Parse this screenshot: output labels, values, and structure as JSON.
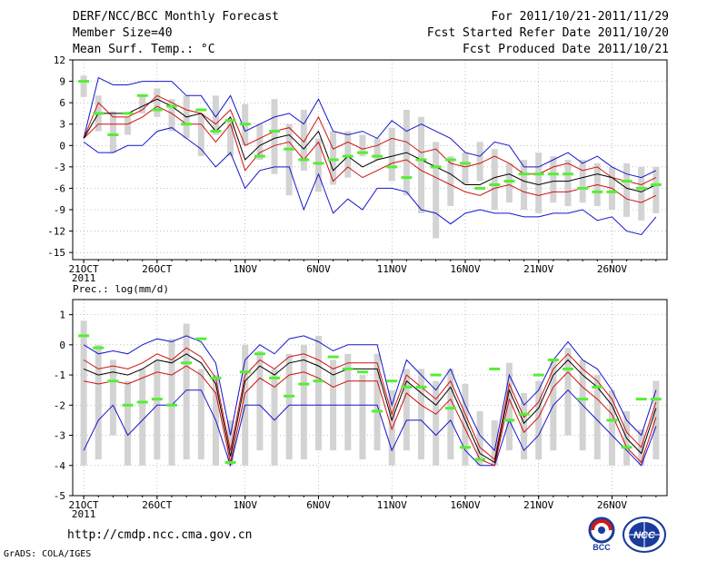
{
  "header": {
    "title": "DERF/NCC/BCC Monthly Forecast",
    "member": "Member Size=40",
    "variable": "Mean Surf. Temp.: °C",
    "period": "For 2011/10/21-2011/11/29",
    "refer": "Fcst Started Refer Date 2011/10/20",
    "produced": "Fcst Produced Date 2011/10/21"
  },
  "footer": {
    "url": "http://cmdp.ncc.cma.gov.cn",
    "grads": "GrADS: COLA/IGES",
    "logo1": "BCC",
    "logo2": "NCC"
  },
  "colors": {
    "box": "#d3d3d3",
    "median": "#55ee33",
    "mean": "#000000",
    "quartile": "#d01010",
    "extreme": "#1515cc",
    "grid": "#999999"
  },
  "chart_data": [
    {
      "type": "box",
      "name": "Mean Surf. Temp.",
      "ylabel": "Mean Surf. Temp.: °C",
      "ylim": [
        -16,
        12
      ],
      "yticks": [
        12,
        9,
        6,
        3,
        0,
        -3,
        -6,
        -9,
        -12,
        -15
      ],
      "grid": true,
      "x_labels": [
        {
          "day": 1,
          "label": "21OCT",
          "sub": "2011"
        },
        {
          "day": 6,
          "label": "26OCT"
        },
        {
          "day": 12,
          "label": "1NOV"
        },
        {
          "day": 17,
          "label": "6NOV"
        },
        {
          "day": 22,
          "label": "11NOV"
        },
        {
          "day": 27,
          "label": "16NOV"
        },
        {
          "day": 32,
          "label": "21NOV"
        },
        {
          "day": 37,
          "label": "26NOV"
        }
      ],
      "days": 40,
      "max": [
        1.0,
        9.5,
        8.5,
        8.5,
        9.0,
        9.0,
        9.0,
        7.0,
        7.0,
        4.0,
        7.0,
        2.0,
        3.0,
        4.0,
        4.5,
        3.0,
        6.5,
        2.0,
        1.5,
        2.0,
        1.0,
        3.5,
        2.0,
        3.0,
        2.0,
        1.0,
        -1.0,
        -1.5,
        0.5,
        0.0,
        -3.0,
        -3.0,
        -2.0,
        -1.0,
        -2.5,
        -1.5,
        -3.0,
        -4.0,
        -4.5,
        -3.5
      ],
      "q3": [
        1.0,
        6.0,
        4.0,
        4.0,
        5.0,
        7.0,
        6.0,
        5.0,
        4.5,
        3.0,
        5.0,
        0.0,
        1.0,
        2.0,
        2.5,
        0.5,
        4.0,
        -0.5,
        0.5,
        -0.5,
        0.0,
        1.0,
        0.5,
        -1.0,
        -0.5,
        -2.5,
        -3.0,
        -2.5,
        -1.5,
        -2.5,
        -4.0,
        -4.0,
        -3.0,
        -2.5,
        -3.5,
        -3.0,
        -4.5,
        -5.0,
        -5.5,
        -4.5
      ],
      "mean": [
        1.0,
        4.5,
        4.5,
        4.5,
        5.5,
        6.5,
        5.5,
        4.0,
        4.5,
        2.0,
        4.0,
        -2.0,
        0.0,
        1.0,
        1.5,
        -0.5,
        2.0,
        -3.5,
        -1.5,
        -3.0,
        -2.0,
        -1.5,
        -1.0,
        -2.0,
        -3.0,
        -4.0,
        -5.5,
        -5.5,
        -4.5,
        -4.0,
        -5.0,
        -5.5,
        -5.0,
        -5.0,
        -4.5,
        -4.0,
        -4.5,
        -6.0,
        -6.5,
        -5.5
      ],
      "q1": [
        1.0,
        3.0,
        3.0,
        3.0,
        4.0,
        5.5,
        4.5,
        3.0,
        3.0,
        0.5,
        3.0,
        -3.5,
        -1.0,
        0.0,
        0.5,
        -2.0,
        0.5,
        -5.0,
        -3.0,
        -4.5,
        -3.5,
        -2.5,
        -2.0,
        -3.5,
        -4.5,
        -5.5,
        -6.5,
        -7.0,
        -6.0,
        -5.5,
        -6.5,
        -7.0,
        -6.5,
        -6.5,
        -6.0,
        -5.5,
        -6.0,
        -7.5,
        -8.0,
        -7.0
      ],
      "min": [
        0.5,
        -1.0,
        -1.0,
        0.0,
        0.0,
        2.0,
        2.5,
        1.0,
        -0.5,
        -3.0,
        -1.0,
        -6.0,
        -3.5,
        -3.0,
        -3.0,
        -9.0,
        -4.0,
        -9.5,
        -7.5,
        -9.0,
        -6.0,
        -6.0,
        -6.5,
        -9.0,
        -9.5,
        -11.0,
        -9.5,
        -9.0,
        -9.5,
        -9.5,
        -10.0,
        -10.0,
        -9.5,
        -9.5,
        -9.0,
        -10.5,
        -10.0,
        -12.0,
        -12.5,
        -10.0
      ],
      "box_hi": [
        9.8,
        7.0,
        4.8,
        4.0,
        7.0,
        8.0,
        6.5,
        7.0,
        4.5,
        7.0,
        3.5,
        5.8,
        3.0,
        6.5,
        3.0,
        5.0,
        1.0,
        2.0,
        2.0,
        1.5,
        1.0,
        2.5,
        5.0,
        4.0,
        0.5,
        -1.5,
        -1.0,
        0.5,
        -0.5,
        -2.5,
        -2.0,
        -1.0,
        -1.5,
        -2.0,
        -2.0,
        -2.5,
        -3.0,
        -2.5,
        -3.0,
        -3.0
      ],
      "box_lo": [
        6.8,
        2.0,
        -1.0,
        1.5,
        4.5,
        4.0,
        2.0,
        1.0,
        -1.5,
        1.5,
        -1.5,
        0.0,
        -2.0,
        -4.0,
        -7.0,
        -3.5,
        -6.5,
        -5.5,
        -4.5,
        -1.5,
        -2.0,
        -5.0,
        -7.0,
        -9.5,
        -13.0,
        -8.5,
        -5.5,
        -5.0,
        -9.0,
        -8.0,
        -9.0,
        -9.5,
        -8.0,
        -8.5,
        -8.0,
        -8.5,
        -9.0,
        -10.0,
        -10.5,
        -9.5
      ],
      "median": [
        9.0,
        4.5,
        1.5,
        4.5,
        7.0,
        5.0,
        5.5,
        3.0,
        5.0,
        2.0,
        3.5,
        3.0,
        -1.5,
        2.0,
        -0.5,
        -2.0,
        -2.5,
        -2.0,
        -1.5,
        -1.0,
        -1.5,
        -3.0,
        -4.5,
        -2.0,
        -3.0,
        -2.0,
        -2.5,
        -6.0,
        -5.5,
        -5.0,
        -4.0,
        -4.0,
        -4.0,
        -4.0,
        -6.0,
        -6.5,
        -6.5,
        -5.0,
        -6.0,
        -5.5
      ]
    },
    {
      "type": "box",
      "name": "Prec.",
      "ylabel": "Prec.: log(mm/d)",
      "ylim": [
        -5,
        1.5
      ],
      "yticks": [
        1,
        0,
        -1,
        -2,
        -3,
        -4,
        -5
      ],
      "grid": true,
      "x_labels": [
        {
          "day": 1,
          "label": "21OCT",
          "sub": "2011"
        },
        {
          "day": 6,
          "label": "26OCT"
        },
        {
          "day": 12,
          "label": "1NOV"
        },
        {
          "day": 17,
          "label": "6NOV"
        },
        {
          "day": 22,
          "label": "11NOV"
        },
        {
          "day": 27,
          "label": "16NOV"
        },
        {
          "day": 32,
          "label": "21NOV"
        },
        {
          "day": 37,
          "label": "26NOV"
        }
      ],
      "days": 40,
      "max": [
        0.0,
        -0.3,
        -0.2,
        -0.3,
        0.0,
        0.2,
        0.1,
        0.3,
        0.1,
        -0.6,
        -3.0,
        -0.5,
        0.0,
        -0.3,
        0.2,
        0.3,
        0.1,
        -0.2,
        0.0,
        0.0,
        0.0,
        -2.0,
        -0.5,
        -1.0,
        -1.5,
        -0.8,
        -2.0,
        -3.0,
        -3.5,
        -1.0,
        -2.0,
        -1.5,
        -0.5,
        0.1,
        -0.5,
        -0.8,
        -1.5,
        -2.5,
        -3.0,
        -1.5
      ],
      "q3": [
        -0.5,
        -0.8,
        -0.7,
        -0.8,
        -0.6,
        -0.3,
        -0.5,
        -0.1,
        -0.4,
        -1.1,
        -3.5,
        -1.0,
        -0.5,
        -0.8,
        -0.4,
        -0.3,
        -0.5,
        -0.8,
        -0.6,
        -0.6,
        -0.6,
        -2.3,
        -1.0,
        -1.4,
        -1.8,
        -1.2,
        -2.3,
        -3.4,
        -3.8,
        -1.3,
        -2.4,
        -1.9,
        -0.8,
        -0.3,
        -0.8,
        -1.2,
        -1.8,
        -2.9,
        -3.4,
        -1.9
      ],
      "mean": [
        -0.8,
        -1.0,
        -0.9,
        -1.0,
        -0.8,
        -0.5,
        -0.6,
        -0.3,
        -0.6,
        -1.3,
        -3.7,
        -1.2,
        -0.7,
        -1.0,
        -0.6,
        -0.5,
        -0.7,
        -1.0,
        -0.8,
        -0.8,
        -0.8,
        -2.5,
        -1.2,
        -1.6,
        -2.0,
        -1.4,
        -2.5,
        -3.6,
        -3.9,
        -1.5,
        -2.6,
        -2.1,
        -1.0,
        -0.5,
        -1.0,
        -1.4,
        -2.0,
        -3.1,
        -3.6,
        -2.1
      ],
      "q1": [
        -1.2,
        -1.3,
        -1.2,
        -1.3,
        -1.1,
        -0.9,
        -1.0,
        -0.7,
        -1.0,
        -1.6,
        -3.9,
        -1.6,
        -1.1,
        -1.4,
        -1.0,
        -0.9,
        -1.1,
        -1.4,
        -1.2,
        -1.2,
        -1.2,
        -2.8,
        -1.6,
        -2.0,
        -2.3,
        -1.8,
        -2.8,
        -3.8,
        -4.0,
        -1.8,
        -2.9,
        -2.4,
        -1.4,
        -0.9,
        -1.4,
        -1.8,
        -2.3,
        -3.4,
        -3.9,
        -2.4
      ],
      "min": [
        -3.5,
        -2.5,
        -2.0,
        -3.0,
        -2.5,
        -2.0,
        -2.0,
        -1.5,
        -1.5,
        -2.5,
        -4.0,
        -2.0,
        -2.0,
        -2.5,
        -2.0,
        -2.0,
        -2.0,
        -2.0,
        -2.0,
        -2.0,
        -2.0,
        -3.5,
        -2.5,
        -2.5,
        -3.0,
        -2.5,
        -3.5,
        -4.0,
        -4.0,
        -2.5,
        -3.5,
        -3.0,
        -2.0,
        -1.5,
        -2.0,
        -2.5,
        -3.0,
        -3.5,
        -4.0,
        -2.7
      ],
      "box_hi": [
        0.8,
        0.0,
        -0.5,
        -1.2,
        -0.8,
        -0.5,
        0.2,
        0.7,
        -0.8,
        -1.0,
        -2.5,
        0.0,
        -0.2,
        -0.8,
        -0.3,
        0.0,
        0.3,
        -0.5,
        -0.3,
        -1.0,
        -0.3,
        -1.5,
        -0.8,
        -0.8,
        -1.2,
        -0.8,
        -1.3,
        -2.2,
        -2.5,
        -0.6,
        -1.6,
        -1.2,
        -0.5,
        -0.1,
        -0.5,
        -1.0,
        -1.5,
        -2.2,
        -2.8,
        -1.2
      ],
      "box_lo": [
        -4.0,
        -3.8,
        -3.0,
        -4.0,
        -4.0,
        -3.8,
        -4.0,
        -3.8,
        -3.8,
        -4.0,
        -4.0,
        -4.0,
        -3.5,
        -4.0,
        -3.8,
        -3.8,
        -3.5,
        -3.5,
        -3.5,
        -3.8,
        -3.5,
        -4.0,
        -3.5,
        -3.8,
        -4.0,
        -3.8,
        -4.0,
        -4.0,
        -4.0,
        -3.5,
        -3.8,
        -3.8,
        -3.5,
        -3.0,
        -3.5,
        -3.8,
        -4.0,
        -4.0,
        -4.0,
        -3.8
      ],
      "median": [
        0.3,
        -0.1,
        -1.2,
        -2.0,
        -1.9,
        -1.8,
        -2.0,
        -0.6,
        0.2,
        -1.1,
        -3.9,
        -0.9,
        -0.3,
        -1.1,
        -1.7,
        -1.3,
        -1.2,
        -0.4,
        -0.8,
        -0.9,
        -2.2,
        -1.2,
        -1.4,
        -1.4,
        -1.0,
        -2.1,
        -3.4,
        -3.8,
        -0.8,
        -2.5,
        -2.3,
        -1.0,
        -0.5,
        -0.8,
        -1.8,
        -1.4,
        -2.5,
        -3.4,
        -1.8,
        -1.8
      ]
    }
  ]
}
